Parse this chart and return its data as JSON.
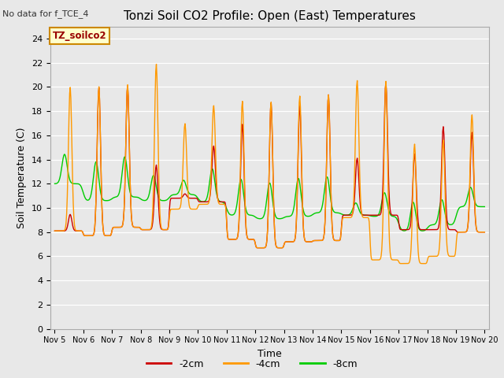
{
  "title": "Tonzi Soil CO2 Profile: Open (East) Temperatures",
  "no_data_text": "No data for f_TCE_4",
  "ylabel": "Soil Temperature (C)",
  "xlabel": "Time",
  "legend_label": "TZ_soilco2",
  "series_labels": [
    "-2cm",
    "-4cm",
    "-8cm"
  ],
  "series_colors": [
    "#cc0000",
    "#ff9900",
    "#00cc00"
  ],
  "ylim": [
    0,
    25
  ],
  "yticks": [
    0,
    2,
    4,
    6,
    8,
    10,
    12,
    14,
    16,
    18,
    20,
    22,
    24
  ],
  "background_color": "#e8e8e8",
  "plot_bg_color": "#e8e8e8",
  "title_fontsize": 11,
  "axis_fontsize": 9,
  "tick_fontsize": 8,
  "xtick_labels": [
    "Nov 5",
    "Nov 6",
    "Nov 7",
    "Nov 8",
    "Nov 9",
    "Nov 10",
    "Nov 11",
    "Nov 12",
    "Nov 13",
    "Nov 14",
    "Nov 15",
    "Nov 16",
    "Nov 17",
    "Nov 18",
    "Nov 19",
    "Nov 20"
  ],
  "num_points_per_day": 48,
  "orange_peaks": [
    21.2,
    21.3,
    21.4,
    23.3,
    17.7,
    19.3,
    20.0,
    20.0,
    20.5,
    20.6,
    21.7,
    22.0,
    16.3,
    16.6,
    18.7
  ],
  "orange_mins": [
    8.1,
    7.7,
    8.4,
    8.2,
    9.9,
    10.3,
    7.4,
    6.7,
    7.2,
    7.3,
    9.2,
    5.7,
    5.4,
    6.0,
    8.0
  ],
  "orange_peak_pos": [
    0.55,
    0.55,
    0.55,
    0.55,
    0.55,
    0.55,
    0.55,
    0.55,
    0.55,
    0.55,
    0.55,
    0.55,
    0.55,
    0.55,
    0.55
  ],
  "red_peaks": [
    9.6,
    21.2,
    21.3,
    14.1,
    11.2,
    15.6,
    17.9,
    19.9,
    19.6,
    20.6,
    14.6,
    21.5,
    15.1,
    17.6,
    17.1
  ],
  "red_mins": [
    8.1,
    7.7,
    8.4,
    8.2,
    10.8,
    10.5,
    7.4,
    6.7,
    7.2,
    7.3,
    9.4,
    9.4,
    8.2,
    8.2,
    8.0
  ],
  "green_peaks": [
    16.1,
    16.0,
    16.5,
    14.1,
    13.1,
    15.1,
    14.4,
    14.1,
    14.6,
    14.6,
    11.1,
    12.6,
    12.1,
    12.1,
    12.8
  ],
  "green_mins": [
    12.0,
    10.6,
    10.9,
    10.6,
    11.1,
    10.5,
    9.4,
    9.1,
    9.3,
    9.6,
    9.4,
    9.3,
    8.1,
    8.6,
    10.1
  ],
  "green_peak_pos": [
    0.35,
    0.45,
    0.45,
    0.45,
    0.5,
    0.5,
    0.5,
    0.5,
    0.5,
    0.5,
    0.5,
    0.5,
    0.5,
    0.5,
    0.5
  ]
}
